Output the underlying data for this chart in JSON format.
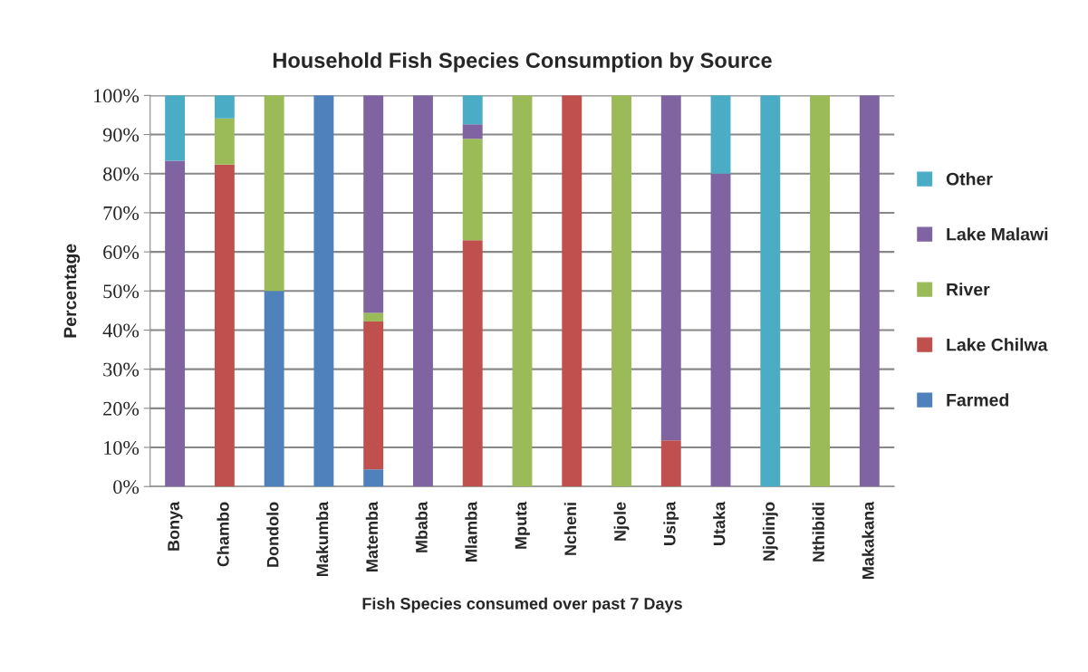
{
  "chart_data": {
    "type": "bar",
    "stacked": true,
    "title": "Household Fish Species Consumption by Source",
    "xlabel": "Fish Species consumed over past 7 Days",
    "ylabel": "Percentage",
    "categories": [
      "Bonya",
      "Chambo",
      "Dondolo",
      "Makumba",
      "Matemba",
      "Mbaba",
      "Mlamba",
      "Mputa",
      "Ncheni",
      "Njole",
      "Usipa",
      "Utaka",
      "Njolinjo",
      "Nthibidi",
      "Makakana"
    ],
    "series": [
      {
        "name": "Farmed",
        "color": "#4f81bd",
        "values": [
          0,
          0,
          50,
          100,
          4.4,
          0,
          0,
          0,
          0,
          0,
          0,
          0,
          0,
          0,
          0
        ]
      },
      {
        "name": "Lake Chilwa",
        "color": "#c0504d",
        "values": [
          0,
          82.3,
          0,
          0,
          37.8,
          0,
          63.0,
          0,
          100,
          0,
          11.8,
          0,
          0,
          0,
          0
        ]
      },
      {
        "name": "River",
        "color": "#9bbb59",
        "values": [
          0,
          11.8,
          50,
          0,
          2.2,
          0,
          25.9,
          100,
          0,
          100,
          0,
          0,
          0,
          100,
          0
        ]
      },
      {
        "name": "Lake Malawi",
        "color": "#8064a2",
        "values": [
          83.3,
          0,
          0,
          0,
          55.6,
          100,
          3.7,
          0,
          0,
          0,
          88.2,
          80,
          0,
          0,
          100
        ]
      },
      {
        "name": "Other",
        "color": "#4bacc6",
        "values": [
          16.7,
          5.9,
          0,
          0,
          0,
          0,
          7.4,
          0,
          0,
          0,
          0,
          20,
          100,
          0,
          0
        ]
      }
    ],
    "ylim": [
      0,
      100
    ],
    "yticks": [
      {
        "value": 0,
        "label": "0%"
      },
      {
        "value": 10,
        "label": "10%"
      },
      {
        "value": 20,
        "label": "20%"
      },
      {
        "value": 30,
        "label": "30%"
      },
      {
        "value": 40,
        "label": "40%"
      },
      {
        "value": 50,
        "label": "50%"
      },
      {
        "value": 60,
        "label": "60%"
      },
      {
        "value": 70,
        "label": "70%"
      },
      {
        "value": 80,
        "label": "80%"
      },
      {
        "value": 90,
        "label": "90%"
      },
      {
        "value": 100,
        "label": "100%"
      }
    ],
    "grid": "y",
    "legend": "right"
  }
}
